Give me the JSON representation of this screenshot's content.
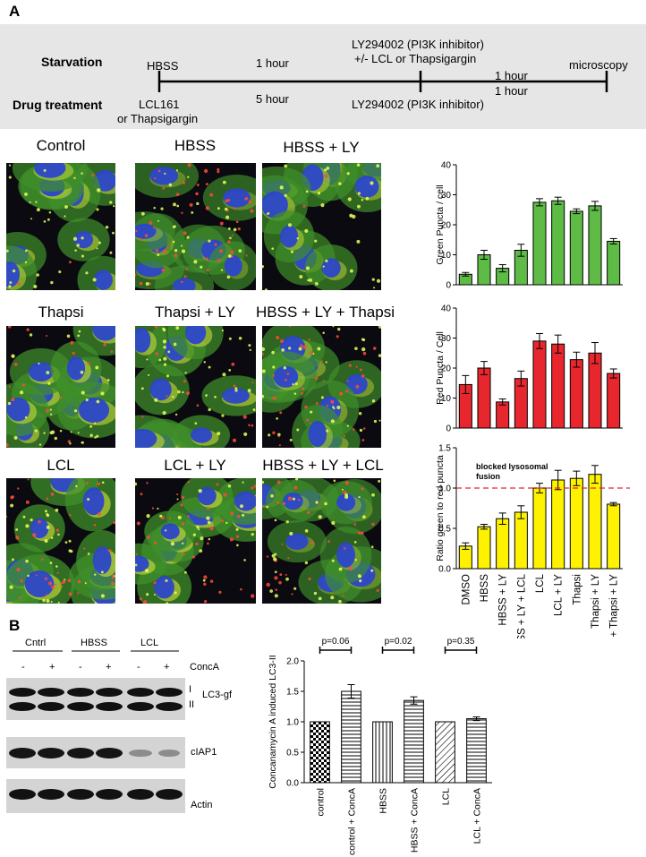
{
  "panel_a_letter": "A",
  "panel_b_letter": "B",
  "timeline": {
    "row1_label": "Starvation",
    "row2_label": "Drug treatment",
    "hbss": "HBSS",
    "one_hour": "1 hour",
    "five_hour": "5 hour",
    "ly_top_line1": "LY294002 (PI3K inhibitor)",
    "ly_top_line2": "+/- LCL or Thapsigargin",
    "ly_bottom": "LY294002 (PI3K inhibitor)",
    "one_hour_a": "1 hour",
    "one_hour_b": "1 hour",
    "microscopy": "microscopy",
    "lcl_line1": "LCL161",
    "lcl_line2": "or Thapsigargin"
  },
  "micrographs": [
    {
      "label": "Control"
    },
    {
      "label": "HBSS"
    },
    {
      "label": "HBSS + LY"
    },
    {
      "label": "Thapsi"
    },
    {
      "label": "Thapsi + LY"
    },
    {
      "label": "HBSS + LY + Thapsi"
    },
    {
      "label": "LCL"
    },
    {
      "label": "LCL + LY"
    },
    {
      "label": "HBSS + LY + LCL"
    }
  ],
  "blots": {
    "groups": [
      "Cntrl",
      "HBSS",
      "LCL"
    ],
    "signs": [
      "-",
      "+",
      "-",
      "+",
      "-",
      "+"
    ],
    "conca_label": "ConcA",
    "lc3_label": "LC3-gf",
    "lc3_band_i": "I",
    "lc3_band_ii": "II",
    "ciap1_label": "cIAP1",
    "actin_label": "Actin"
  },
  "chart_data": [
    {
      "type": "bar",
      "categories": [
        "DMSO",
        "HBSS",
        "HBSS + LY",
        "HBSS + LY + LCL",
        "LCL",
        "LCL + LY",
        "Thapsi",
        "Thapsi + LY",
        "HBSS + Thapsi + LY"
      ],
      "values": [
        3.5,
        10,
        5.5,
        11.5,
        27.5,
        28,
        24.5,
        26.3,
        14.5
      ],
      "errors": [
        0.6,
        1.5,
        1.2,
        2,
        1.2,
        1.2,
        0.8,
        1.5,
        0.9
      ],
      "ylabel": "Green Puncta / cell",
      "ylim": [
        0,
        40
      ],
      "yticks": [
        0,
        10,
        20,
        30,
        40
      ],
      "color": "#5dbb46"
    },
    {
      "type": "bar",
      "categories": [
        "DMSO",
        "HBSS",
        "HBSS + LY",
        "HBSS + LY + LCL",
        "LCL",
        "LCL + LY",
        "Thapsi",
        "Thapsi + LY",
        "HBSS + Thapsi + LY"
      ],
      "values": [
        14.5,
        20,
        8.7,
        16.5,
        29,
        28,
        22.8,
        25,
        18.2
      ],
      "errors": [
        3,
        2.2,
        1,
        2.5,
        2.5,
        3,
        2.5,
        3.5,
        1.5
      ],
      "ylabel": "Red Puncta / Cell",
      "ylim": [
        0,
        40
      ],
      "yticks": [
        0,
        10,
        20,
        30,
        40
      ],
      "color": "#e8262d"
    },
    {
      "type": "bar",
      "categories": [
        "DMSO",
        "HBSS",
        "HBSS + LY",
        "HBSS + LY + LCL",
        "LCL",
        "LCL + LY",
        "Thapsi",
        "Thapsi + LY",
        "HBSS + Thapsi + LY"
      ],
      "values": [
        0.28,
        0.52,
        0.62,
        0.7,
        1.0,
        1.1,
        1.12,
        1.17,
        0.8
      ],
      "errors": [
        0.04,
        0.03,
        0.07,
        0.08,
        0.06,
        0.12,
        0.09,
        0.11,
        0.02
      ],
      "ylabel": "Ratio green to red puncta",
      "ylim": [
        0,
        1.5
      ],
      "yticks": [
        "0.0",
        "0.5",
        "1.0",
        "1.5"
      ],
      "color": "#fff200",
      "reference_line": 1.0,
      "annotation_line1": "blocked lysosomal",
      "annotation_line2": "fusion"
    },
    {
      "type": "bar",
      "categories": [
        "control",
        "control + ConcA",
        "HBSS",
        "HBSS + ConcA",
        "LCL",
        "LCL + ConcA"
      ],
      "values": [
        1.0,
        1.5,
        1.0,
        1.35,
        1.0,
        1.05
      ],
      "errors": [
        0,
        0.11,
        0,
        0.06,
        0,
        0.03
      ],
      "ylabel": "Concanamycin A induced LC3-II",
      "ylim": [
        0,
        2.0
      ],
      "yticks": [
        "0.0",
        "0.5",
        "1.0",
        "1.5",
        "2.0"
      ],
      "pvalues": [
        "p=0.06",
        "p=0.02",
        "p=0.35"
      ]
    }
  ]
}
